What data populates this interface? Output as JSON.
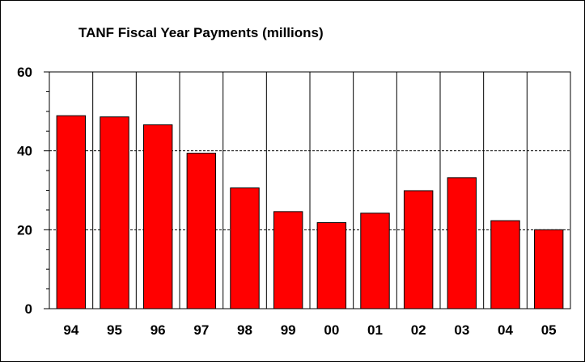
{
  "chart_data": {
    "type": "bar",
    "title": "TANF Fiscal Year Payments (millions)",
    "xlabel": "",
    "ylabel": "",
    "categories": [
      "94",
      "95",
      "96",
      "97",
      "98",
      "99",
      "00",
      "01",
      "02",
      "03",
      "04",
      "05"
    ],
    "values": [
      48.9,
      48.6,
      46.6,
      39.4,
      30.6,
      24.6,
      21.8,
      24.2,
      29.9,
      33.2,
      22.3,
      20.0
    ],
    "ylim": [
      0,
      60
    ],
    "yticks": [
      "0",
      "20",
      "40",
      "60"
    ],
    "grid": "dashed horizontal at 20 and 40",
    "legend": "none",
    "bar_color": "#ff0000",
    "bar_edge_color": "#000000"
  }
}
